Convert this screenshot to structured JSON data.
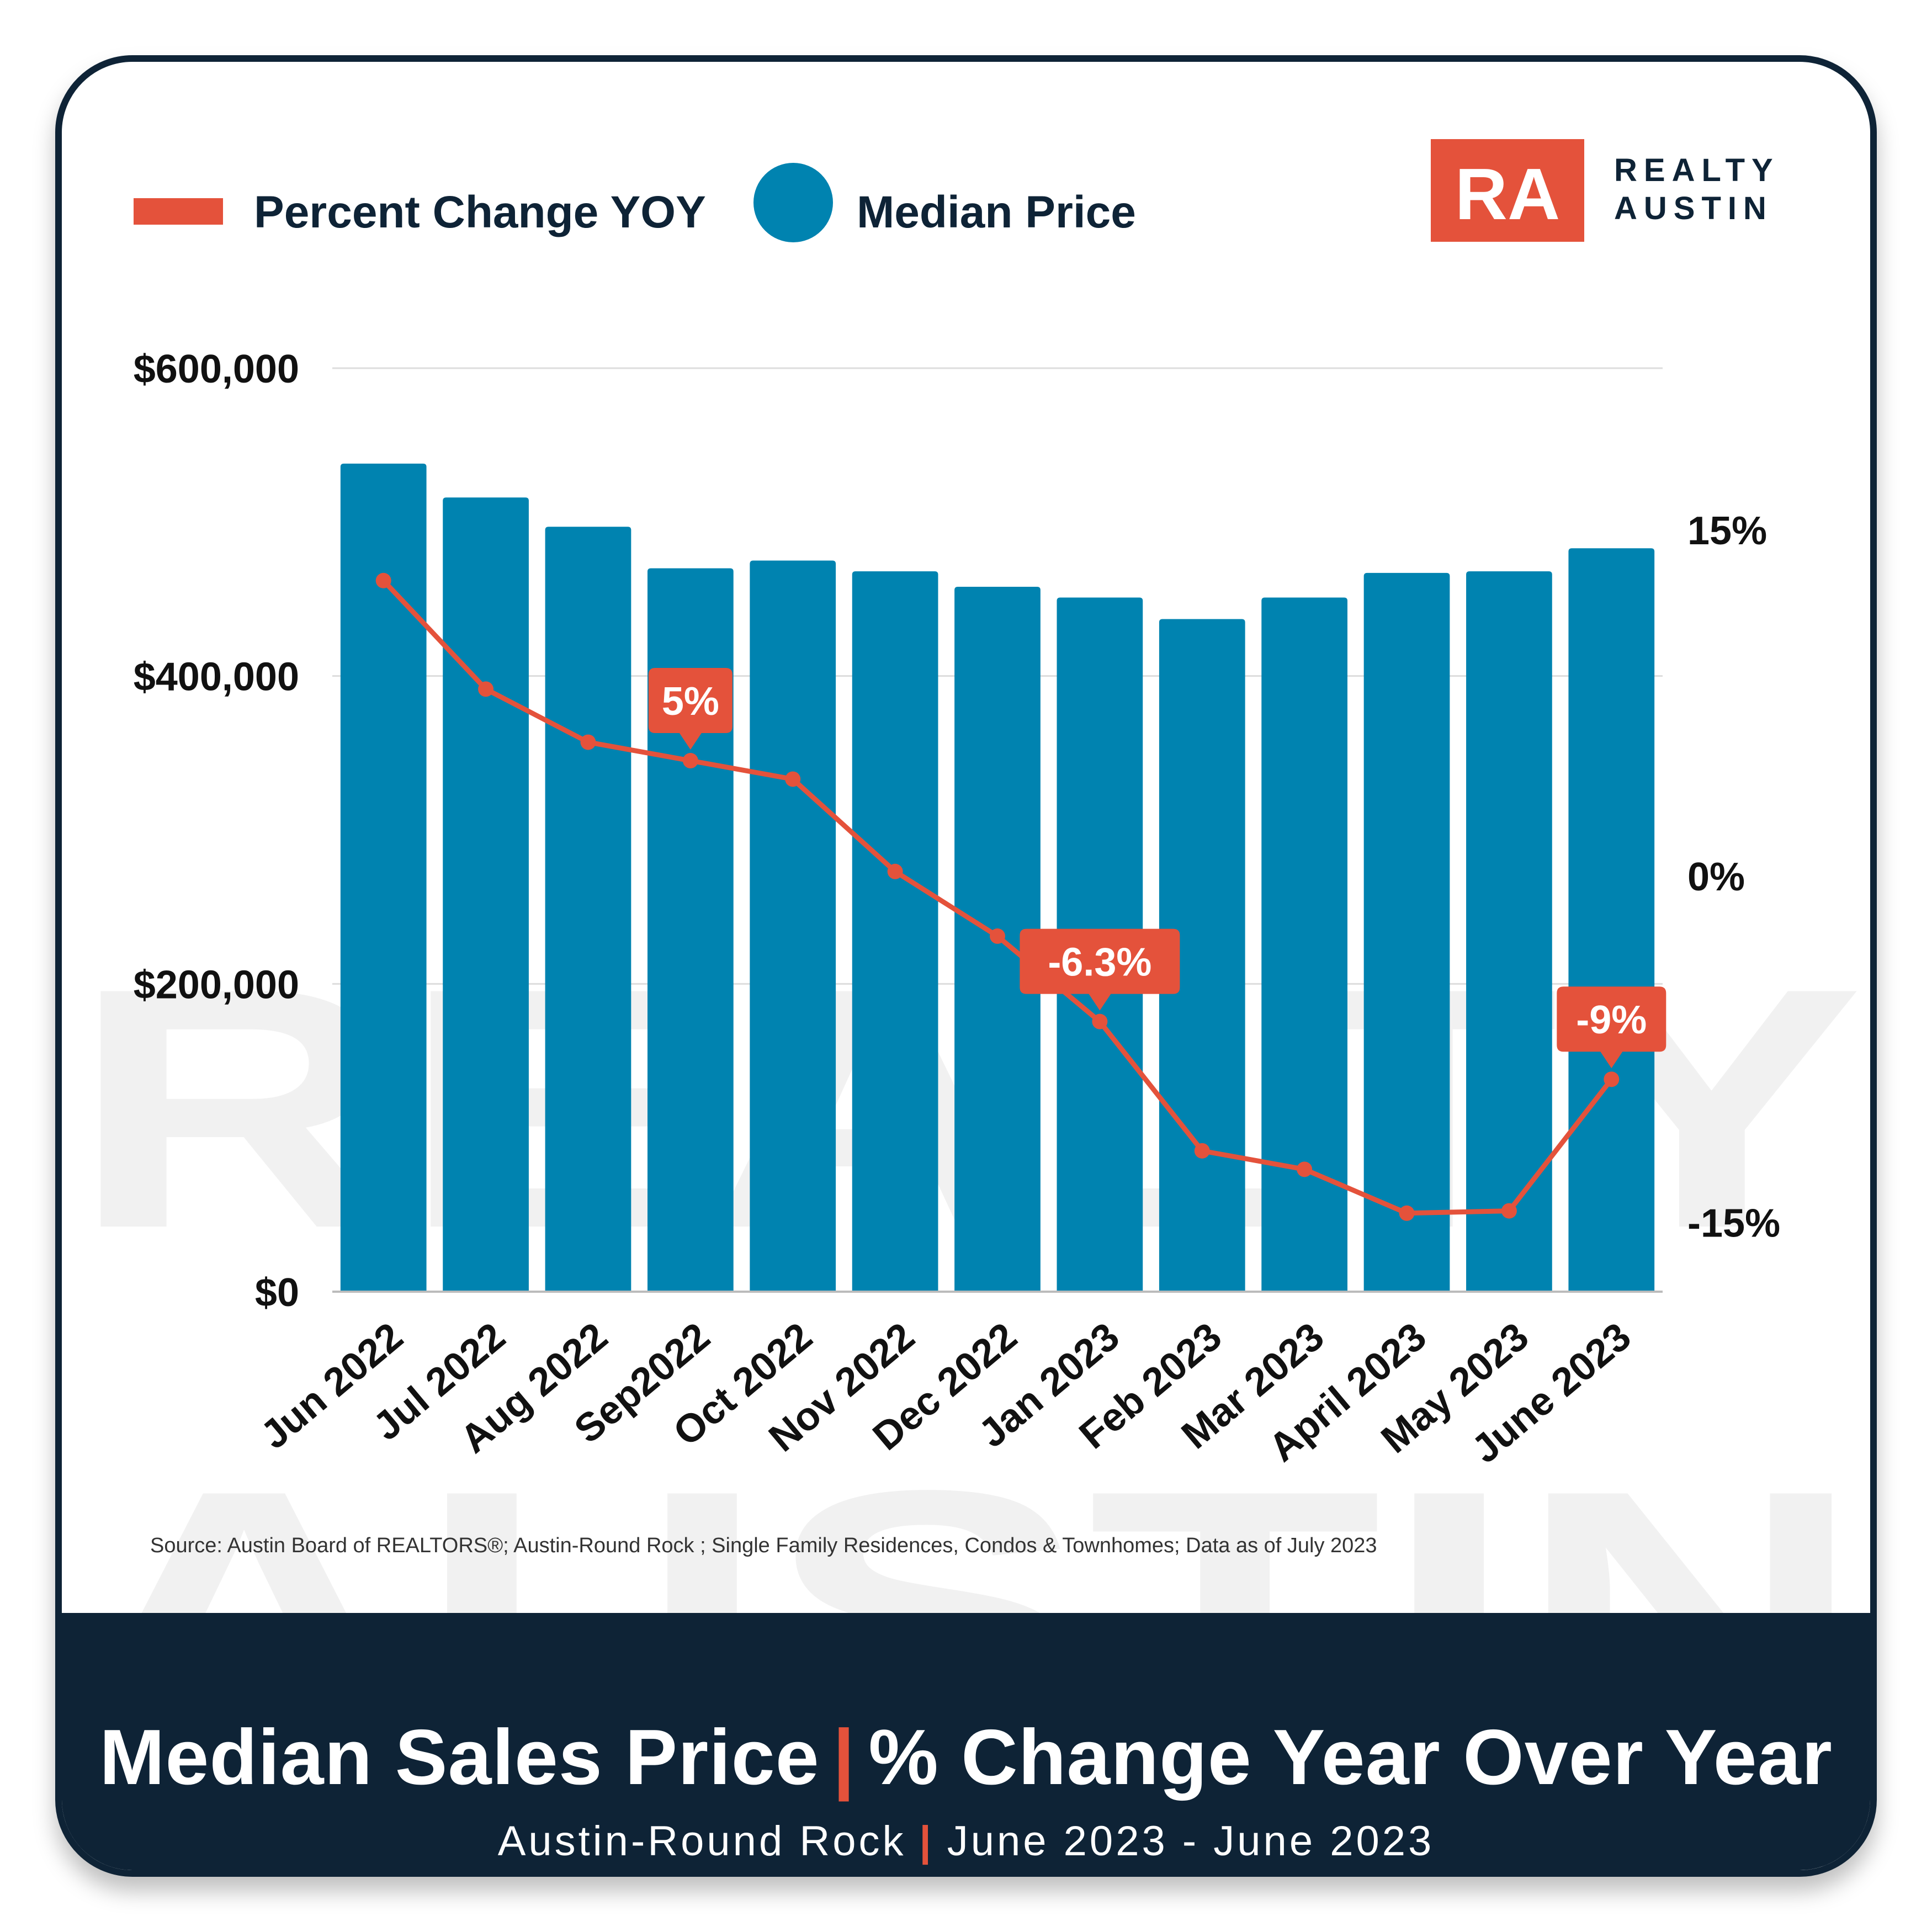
{
  "colors": {
    "bar": "#0083b0",
    "line": "#e4523b",
    "dark": "#0e2336",
    "watermark": "#f1f1f1"
  },
  "legend": {
    "line_label": "Percent Change YOY",
    "bar_label": "Median Price"
  },
  "logo": {
    "mark": "RA",
    "line1": "REALTY",
    "line2": "AUSTIN"
  },
  "watermark": {
    "line1": "REALTY",
    "line2": "AUSTIN"
  },
  "source": "Source: Austin Board of REALTORS®; Austin-Round Rock ; Single Family Residences, Condos & Townhomes; Data as of July 2023",
  "footer": {
    "title_left": "Median Sales Price",
    "separator": "|",
    "title_right": "% Change Year Over Year",
    "subtitle_left": "Austin-Round Rock",
    "subtitle_right": "June 2023 - June 2023"
  },
  "chart_data": {
    "type": "bar",
    "categories": [
      "Jun 2022",
      "Jul 2022",
      "Aug 2022",
      "Sep2022",
      "Oct 2022",
      "Nov 2022",
      "Dec 2022",
      "Jan 2023",
      "Feb 2023",
      "Mar 2023",
      "April 2023",
      "May 2023",
      "June 2023"
    ],
    "y_left": {
      "ticks": [
        0,
        200000,
        400000,
        600000
      ],
      "tick_labels": [
        "$0",
        "$200,000",
        "$400,000",
        "$600,000"
      ],
      "ylim": [
        0,
        600000
      ]
    },
    "y_right": {
      "ticks": [
        -15,
        0,
        15
      ],
      "tick_labels": [
        "-15%",
        "0%",
        "15%"
      ],
      "ylim": [
        -18,
        22
      ]
    },
    "series": [
      {
        "name": "Median Price",
        "type": "bar",
        "axis": "left",
        "values": [
          538000,
          516000,
          497000,
          470000,
          475000,
          468000,
          458000,
          451000,
          437000,
          451000,
          467000,
          468000,
          483000
        ]
      },
      {
        "name": "Percent Change YOY",
        "type": "line",
        "axis": "right",
        "values": [
          12.8,
          8.1,
          5.8,
          5.0,
          4.2,
          0.2,
          -2.6,
          -6.3,
          -11.9,
          -12.7,
          -14.6,
          -14.5,
          -8.8
        ]
      }
    ],
    "annotations": [
      {
        "index": 3,
        "label": "5%"
      },
      {
        "index": 7,
        "label": "-6.3%"
      },
      {
        "index": 12,
        "label": "-9%"
      }
    ],
    "grid": true,
    "legend_position": "top-left"
  }
}
